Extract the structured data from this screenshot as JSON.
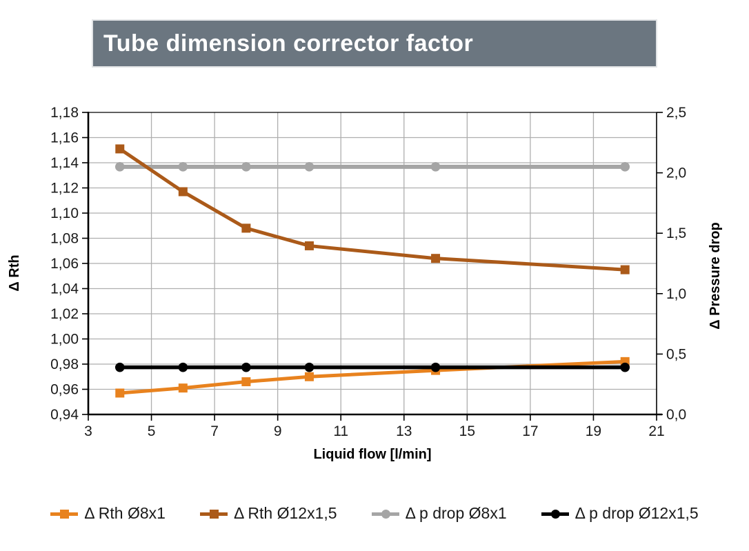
{
  "title_banner": {
    "text": "Tube dimension corrector factor",
    "bg_color": "#6b7680",
    "text_color": "#ffffff"
  },
  "chart_data": {
    "type": "line",
    "title": "Tube dimension corrector factor",
    "xlabel": "Liquid flow [l/min]",
    "ylabel_left": "Δ Rth",
    "ylabel_right": "Δ Pressure drop",
    "x": [
      4,
      6,
      8,
      10,
      14,
      20
    ],
    "series": [
      {
        "name": "Δ Rth Ø8x1",
        "axis": "left",
        "marker": "square",
        "color": "#e8821e",
        "line_width": 5,
        "values": [
          0.957,
          0.961,
          0.966,
          0.97,
          0.975,
          0.982
        ]
      },
      {
        "name": "Δ Rth Ø12x1,5",
        "axis": "left",
        "marker": "square",
        "color": "#ab5a19",
        "line_width": 5,
        "values": [
          1.151,
          1.117,
          1.088,
          1.074,
          1.064,
          1.055
        ]
      },
      {
        "name": "Δ p drop Ø8x1",
        "axis": "right",
        "marker": "circle",
        "color": "#a5a5a5",
        "line_width": 6,
        "values": [
          2.05,
          2.05,
          2.05,
          2.05,
          2.05,
          2.05
        ]
      },
      {
        "name": "Δ p drop Ø12x1,5",
        "axis": "right",
        "marker": "circle",
        "color": "#000000",
        "line_width": 5.5,
        "values": [
          0.39,
          0.39,
          0.39,
          0.39,
          0.39,
          0.39
        ]
      }
    ],
    "draw_order": [
      2,
      1,
      0,
      3
    ],
    "x_axis": {
      "min": 3,
      "max": 21,
      "tick_labels": [
        "3",
        "5",
        "7",
        "9",
        "11",
        "13",
        "15",
        "17",
        "19",
        "21"
      ]
    },
    "y_left": {
      "min": 0.94,
      "max": 1.18,
      "tick_labels": [
        "0,94",
        "0,96",
        "0,98",
        "1,00",
        "1,02",
        "1,04",
        "1,06",
        "1,08",
        "1,10",
        "1,12",
        "1,14",
        "1,16",
        "1,18"
      ]
    },
    "y_right": {
      "min": 0.0,
      "max": 2.5,
      "tick_labels": [
        "0,0",
        "0,5",
        "1,0",
        "1,5",
        "2,0",
        "2,5"
      ]
    },
    "grid": true,
    "grid_color": "#aeaeae",
    "axis_color": "#000000",
    "tick_label_color": "#1a1a1a",
    "legend_position": "bottom"
  }
}
